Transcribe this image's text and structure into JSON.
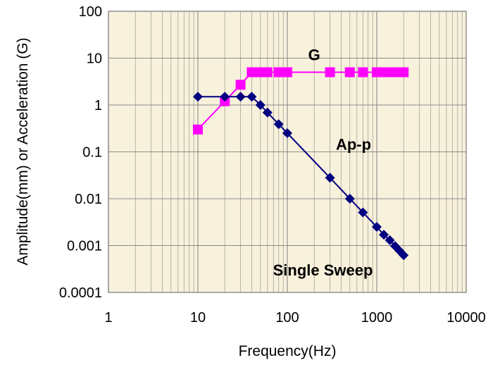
{
  "chart_data": {
    "type": "line",
    "title": "",
    "xlabel": "Frequency(Hz)",
    "ylabel": "Amplitude(mm) or Acceleration (G)",
    "xscale": "log",
    "yscale": "log",
    "xlim": [
      1,
      10000
    ],
    "ylim": [
      0.0001,
      100
    ],
    "grid": true,
    "plot_background": "#f8f1dc",
    "x_ticks": [
      {
        "value": 1,
        "label": "1"
      },
      {
        "value": 10,
        "label": "10"
      },
      {
        "value": 100,
        "label": "100"
      },
      {
        "value": 1000,
        "label": "1000"
      },
      {
        "value": 10000,
        "label": "10000"
      }
    ],
    "y_ticks": [
      {
        "value": 100,
        "label": "100"
      },
      {
        "value": 10,
        "label": "10"
      },
      {
        "value": 1,
        "label": "1"
      },
      {
        "value": 0.1,
        "label": "0.1"
      },
      {
        "value": 0.01,
        "label": "0.01"
      },
      {
        "value": 0.001,
        "label": "0.001"
      },
      {
        "value": 0.0001,
        "label": "0.0001"
      }
    ],
    "series": [
      {
        "name": "G",
        "color": "#ff00ff",
        "marker": "square",
        "x": [
          10,
          20,
          30,
          40,
          50,
          60,
          80,
          100,
          300,
          500,
          700,
          1000,
          1200,
          1400,
          1600,
          1800,
          2000
        ],
        "y": [
          0.3,
          1.2,
          2.7,
          5,
          5,
          5,
          5,
          5,
          5,
          5,
          5,
          5,
          5,
          5,
          5,
          5,
          5
        ]
      },
      {
        "name": "Ap-p",
        "color": "#000080",
        "marker": "diamond",
        "x": [
          10,
          20,
          30,
          40,
          50,
          60,
          80,
          100,
          300,
          500,
          700,
          1000,
          1200,
          1400,
          1600,
          1800,
          2000
        ],
        "y": [
          1.5,
          1.5,
          1.5,
          1.5,
          1.0,
          0.69,
          0.39,
          0.25,
          0.028,
          0.01,
          0.0051,
          0.0025,
          0.0017,
          0.0013,
          0.00098,
          0.00077,
          0.00062
        ]
      }
    ],
    "annotations": [
      {
        "text": "G",
        "x": 200,
        "y": 9
      },
      {
        "text": "Ap-p",
        "x": 550,
        "y": 0.11
      },
      {
        "text": "Single Sweep",
        "x": 250,
        "y": 0.00023
      }
    ]
  }
}
